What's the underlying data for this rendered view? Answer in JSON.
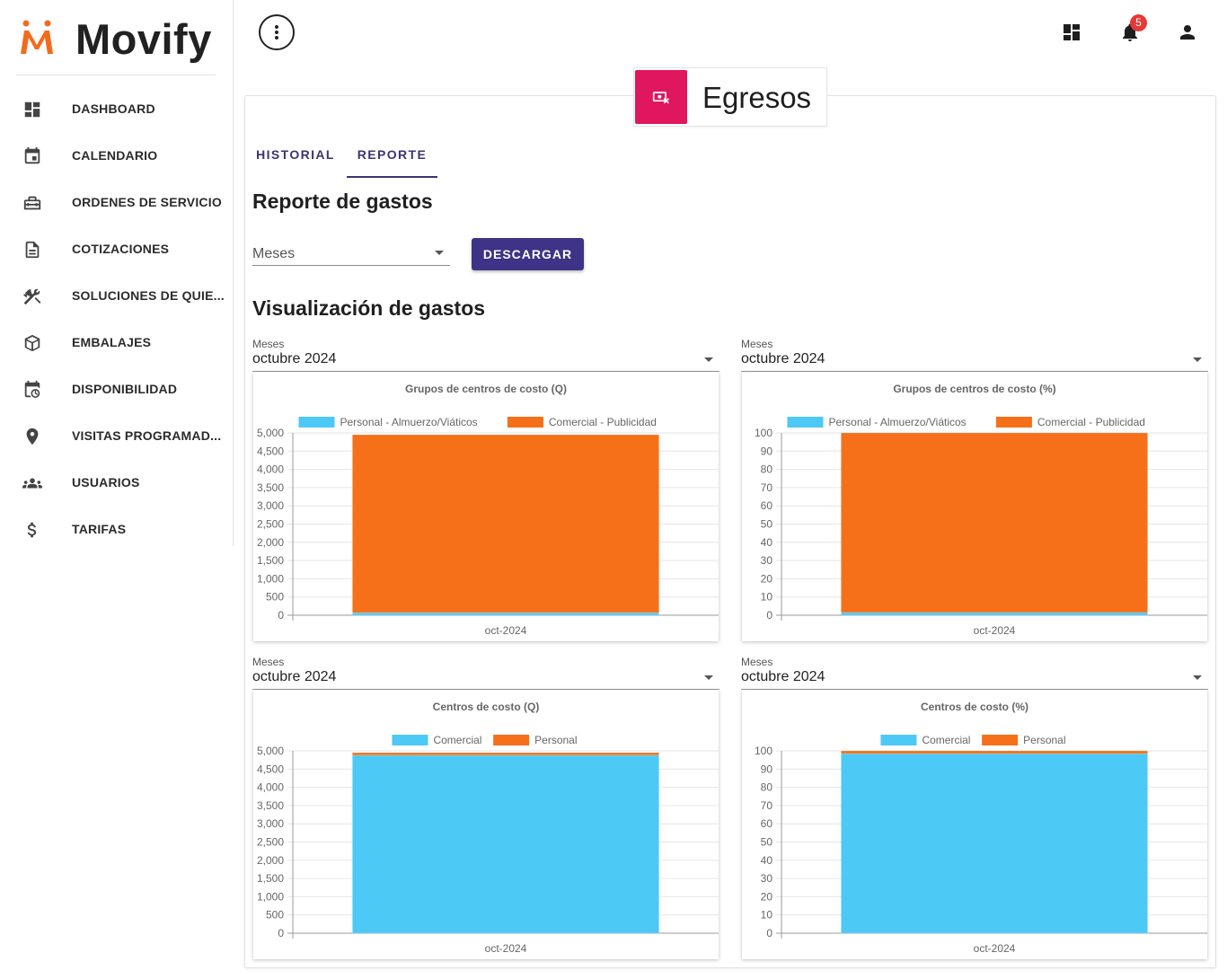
{
  "app": {
    "name": "Movify"
  },
  "sidebar": {
    "items": [
      {
        "label": "DASHBOARD",
        "icon": "dashboard-icon"
      },
      {
        "label": "CALENDARIO",
        "icon": "calendar-icon"
      },
      {
        "label": "ORDENES DE SERVICIO",
        "icon": "toolbox-icon"
      },
      {
        "label": "COTIZACIONES",
        "icon": "document-icon"
      },
      {
        "label": "SOLUCIONES DE QUIE...",
        "icon": "tools-icon"
      },
      {
        "label": "EMBALAJES",
        "icon": "package-icon"
      },
      {
        "label": "DISPONIBILIDAD",
        "icon": "calendar-clock-icon"
      },
      {
        "label": "VISITAS PROGRAMAD...",
        "icon": "location-pin-icon"
      },
      {
        "label": "USUARIOS",
        "icon": "users-icon"
      },
      {
        "label": "TARIFAS",
        "icon": "dollar-icon"
      }
    ]
  },
  "topbar": {
    "notifications_count": "5"
  },
  "header": {
    "title": "Egresos",
    "icon": "money-off-icon"
  },
  "tabs": [
    {
      "label": "HISTORIAL"
    },
    {
      "label": "REPORTE",
      "active": true
    }
  ],
  "report": {
    "title": "Reporte de gastos",
    "select_value": "Meses",
    "download_label": "DESCARGAR"
  },
  "visualization": {
    "title": "Visualización de gastos"
  },
  "panels": [
    {
      "select_label": "Meses",
      "select_value": "octubre 2024"
    },
    {
      "select_label": "Meses",
      "select_value": "octubre 2024"
    },
    {
      "select_label": "Meses",
      "select_value": "octubre 2024"
    },
    {
      "select_label": "Meses",
      "select_value": "octubre 2024"
    }
  ],
  "colors": {
    "brand_orange": "#f26b1d",
    "primary": "#3e3386",
    "header_pink": "#e0175e",
    "series_blue": "#4dc9f6",
    "series_orange": "#f67019"
  },
  "chart_data": [
    {
      "type": "bar",
      "stacked": true,
      "title": "Grupos de centros de costo (Q)",
      "categories": [
        "oct-2024"
      ],
      "series": [
        {
          "name": "Personal - Almuerzo/Viáticos",
          "values": [
            70
          ],
          "color": "#4dc9f6"
        },
        {
          "name": "Comercial - Publicidad",
          "values": [
            4880
          ],
          "color": "#f67019"
        }
      ],
      "ylim": [
        0,
        5000
      ],
      "yticks": [
        0,
        500,
        1000,
        1500,
        2000,
        2500,
        3000,
        3500,
        4000,
        4500,
        5000
      ],
      "ytick_labels": [
        "0",
        "500",
        "1,000",
        "1,500",
        "2,000",
        "2,500",
        "3,000",
        "3,500",
        "4,000",
        "4,500",
        "5,000"
      ],
      "legend": "top",
      "grid": true
    },
    {
      "type": "bar",
      "stacked": true,
      "title": "Grupos de centros de costo (%)",
      "categories": [
        "oct-2024"
      ],
      "series": [
        {
          "name": "Personal - Almuerzo/Viáticos",
          "values": [
            1.5
          ],
          "color": "#4dc9f6"
        },
        {
          "name": "Comercial - Publicidad",
          "values": [
            98.5
          ],
          "color": "#f67019"
        }
      ],
      "ylim": [
        0,
        100
      ],
      "yticks": [
        0,
        10,
        20,
        30,
        40,
        50,
        60,
        70,
        80,
        90,
        100
      ],
      "ytick_labels": [
        "0",
        "10",
        "20",
        "30",
        "40",
        "50",
        "60",
        "70",
        "80",
        "90",
        "100"
      ],
      "legend": "top",
      "grid": true
    },
    {
      "type": "bar",
      "stacked": true,
      "title": "Centros de costo (Q)",
      "categories": [
        "oct-2024"
      ],
      "series": [
        {
          "name": "Comercial",
          "values": [
            4880
          ],
          "color": "#4dc9f6"
        },
        {
          "name": "Personal",
          "values": [
            70
          ],
          "color": "#f67019"
        }
      ],
      "ylim": [
        0,
        5000
      ],
      "yticks": [
        0,
        500,
        1000,
        1500,
        2000,
        2500,
        3000,
        3500,
        4000,
        4500,
        5000
      ],
      "ytick_labels": [
        "0",
        "500",
        "1,000",
        "1,500",
        "2,000",
        "2,500",
        "3,000",
        "3,500",
        "4,000",
        "4,500",
        "5,000"
      ],
      "legend": "top",
      "grid": true
    },
    {
      "type": "bar",
      "stacked": true,
      "title": "Centros de costo (%)",
      "categories": [
        "oct-2024"
      ],
      "series": [
        {
          "name": "Comercial",
          "values": [
            98.5
          ],
          "color": "#4dc9f6"
        },
        {
          "name": "Personal",
          "values": [
            1.5
          ],
          "color": "#f67019"
        }
      ],
      "ylim": [
        0,
        100
      ],
      "yticks": [
        0,
        10,
        20,
        30,
        40,
        50,
        60,
        70,
        80,
        90,
        100
      ],
      "ytick_labels": [
        "0",
        "10",
        "20",
        "30",
        "40",
        "50",
        "60",
        "70",
        "80",
        "90",
        "100"
      ],
      "legend": "top",
      "grid": true
    }
  ]
}
